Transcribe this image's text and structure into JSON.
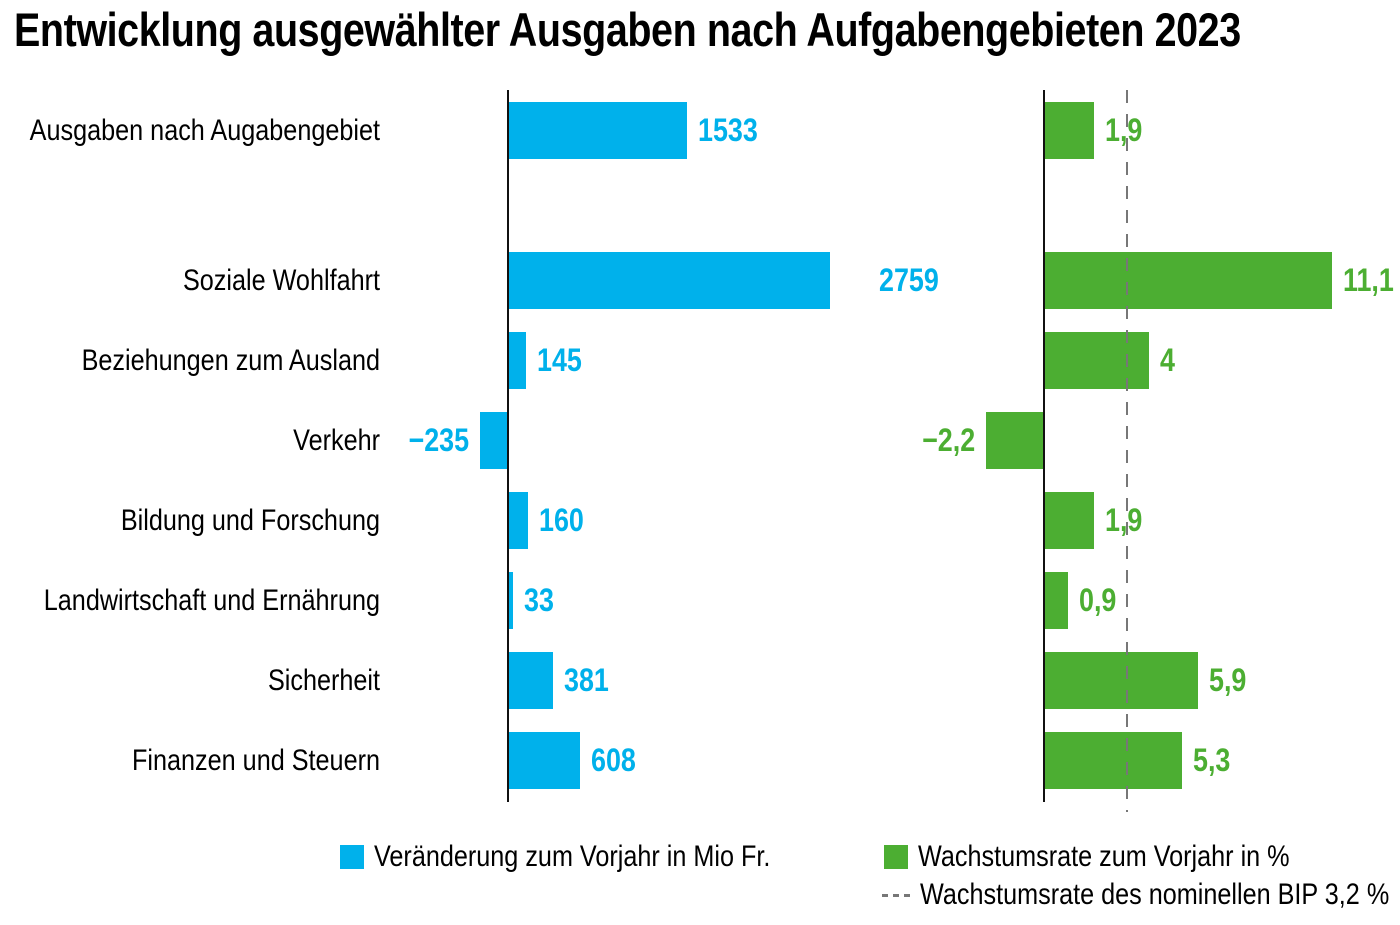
{
  "title": "Entwicklung ausgewählter Ausgaben nach Aufgabengebieten 2023",
  "colors": {
    "blue": "#00B1EB",
    "green": "#4CAE32",
    "axis": "#111111",
    "reference_dash": "#777777"
  },
  "legend": {
    "blue_label": "Veränderung zum Vorjahr in Mio Fr.",
    "green_label": "Wachstumsrate zum Vorjahr in %",
    "dashed_label": "Wachstumsrate des nominellen BIP 3,2 %"
  },
  "chart_data": {
    "type": "bar",
    "orientation": "horizontal",
    "title": "Entwicklung ausgewählter Ausgaben nach Aufgabengebieten 2023",
    "categories": [
      "Ausgaben nach Augabengebiet",
      "Soziale Wohlfahrt",
      "Beziehungen zum Ausland",
      "Verkehr",
      "Bildung und Forschung",
      "Landwirtschaft und Ernährung",
      "Sicherheit",
      "Finanzen und Steuern"
    ],
    "series": [
      {
        "name": "Veränderung zum Vorjahr in Mio Fr.",
        "color": "#00B1EB",
        "values": [
          1533,
          2759,
          145,
          -235,
          160,
          33,
          381,
          608
        ],
        "value_labels": [
          "1533",
          "2759",
          "145",
          "−235",
          "160",
          "33",
          "381",
          "608"
        ]
      },
      {
        "name": "Wachstumsrate zum Vorjahr in %",
        "color": "#4CAE32",
        "values": [
          1.9,
          11.1,
          4,
          -2.2,
          1.9,
          0.9,
          5.9,
          5.3
        ],
        "value_labels": [
          "1,9",
          "11,1",
          "4",
          "−2,2",
          "1,9",
          "0,9",
          "5,9",
          "5,3"
        ]
      }
    ],
    "reference_line": {
      "value": 3.2,
      "applies_to_series": "Wachstumsrate zum Vorjahr in %",
      "label": "Wachstumsrate des nominellen BIP 3,2 %",
      "style": "dashed"
    },
    "layout_hints": {
      "two_panel": true,
      "gap_after_first_category": true,
      "grid": false,
      "legend_position": "bottom"
    }
  }
}
